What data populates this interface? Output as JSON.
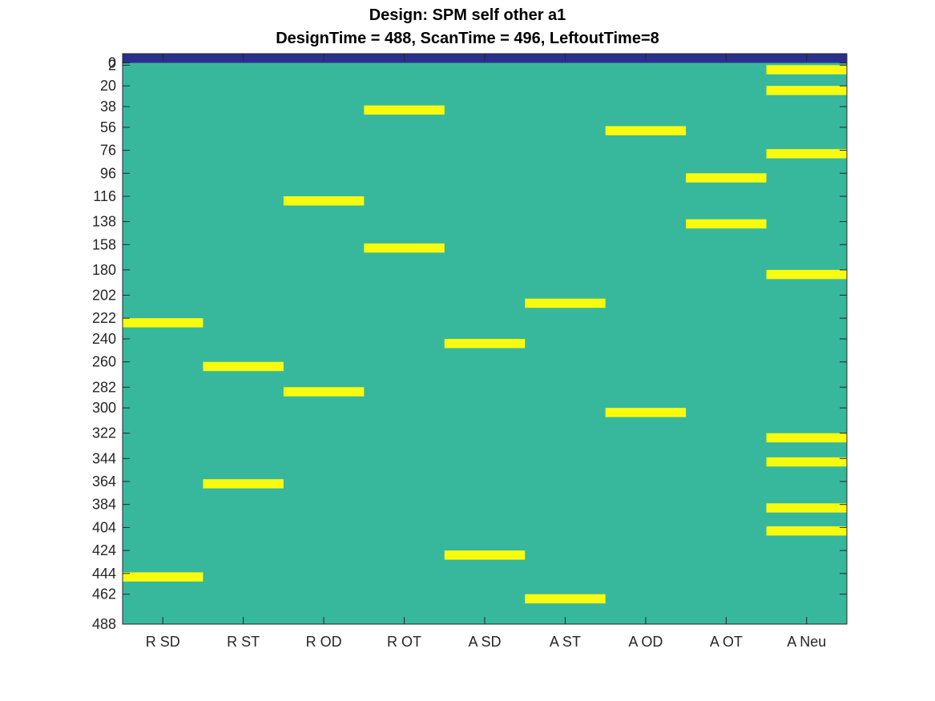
{
  "figure": {
    "title": "Design: SPM self other a1",
    "subtitle": "DesignTime = 488, ScanTime = 496, LeftoutTime=8"
  },
  "chart_data": {
    "type": "heatmap",
    "title": "Design: SPM self other a1",
    "subtitle": "DesignTime = 488, ScanTime = 496, LeftoutTime=8",
    "xlabel": "",
    "ylabel": "",
    "categories": [
      "R SD",
      "R ST",
      "R OD",
      "R OT",
      "A SD",
      "A ST",
      "A OD",
      "A OT",
      "A Neu"
    ],
    "y_ticks": [
      0,
      2,
      20,
      38,
      56,
      76,
      96,
      116,
      138,
      158,
      180,
      202,
      222,
      240,
      260,
      282,
      300,
      322,
      344,
      364,
      384,
      404,
      424,
      444,
      462,
      488
    ],
    "y_tick_labels": [
      "0",
      "2",
      "20",
      "38",
      "56",
      "76",
      "96",
      "116",
      "138",
      "158",
      "180",
      "202",
      "222",
      "240",
      "260",
      "282",
      "300",
      "322",
      "344",
      "364",
      "384",
      "404",
      "424",
      "444",
      "462",
      "488"
    ],
    "ylim": [
      -8,
      488
    ],
    "y_direction": "reversed",
    "values_legend": {
      "leftout": 0,
      "background": 0.5,
      "event": 1
    },
    "colors": {
      "leftout": "#2b2f8c",
      "background": "#37b89d",
      "event": "#f9fb0e"
    },
    "leftout_range": [
      -8,
      0
    ],
    "events": [
      {
        "column": "R SD",
        "start": 222,
        "end": 230
      },
      {
        "column": "R SD",
        "start": 443,
        "end": 451
      },
      {
        "column": "R ST",
        "start": 260,
        "end": 268
      },
      {
        "column": "R ST",
        "start": 362,
        "end": 370
      },
      {
        "column": "R OD",
        "start": 116,
        "end": 124
      },
      {
        "column": "R OD",
        "start": 282,
        "end": 290
      },
      {
        "column": "R OT",
        "start": 37,
        "end": 45
      },
      {
        "column": "R OT",
        "start": 157,
        "end": 165
      },
      {
        "column": "A SD",
        "start": 240,
        "end": 248
      },
      {
        "column": "A SD",
        "start": 424,
        "end": 432
      },
      {
        "column": "A ST",
        "start": 205,
        "end": 213
      },
      {
        "column": "A ST",
        "start": 462,
        "end": 470
      },
      {
        "column": "A OD",
        "start": 55,
        "end": 63
      },
      {
        "column": "A OD",
        "start": 300,
        "end": 308
      },
      {
        "column": "A OT",
        "start": 96,
        "end": 104
      },
      {
        "column": "A OT",
        "start": 136,
        "end": 144
      },
      {
        "column": "A Neu",
        "start": 2,
        "end": 10
      },
      {
        "column": "A Neu",
        "start": 20,
        "end": 28
      },
      {
        "column": "A Neu",
        "start": 75,
        "end": 83
      },
      {
        "column": "A Neu",
        "start": 180,
        "end": 188
      },
      {
        "column": "A Neu",
        "start": 322,
        "end": 330
      },
      {
        "column": "A Neu",
        "start": 343,
        "end": 351
      },
      {
        "column": "A Neu",
        "start": 383,
        "end": 391
      },
      {
        "column": "A Neu",
        "start": 403,
        "end": 411
      }
    ]
  }
}
